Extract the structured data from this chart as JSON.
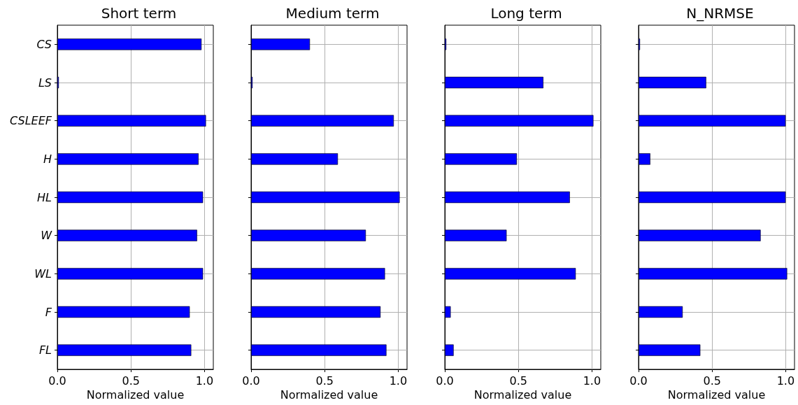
{
  "chart_data": [
    {
      "type": "bar",
      "orientation": "horizontal",
      "title": "Short term",
      "xlabel": "Normalized value",
      "categories": [
        "CS",
        "LS",
        "CSLEEF",
        "H",
        "HL",
        "W",
        "WL",
        "F",
        "FL"
      ],
      "values": [
        0.98,
        0.01,
        1.01,
        0.96,
        0.99,
        0.95,
        0.99,
        0.9,
        0.91
      ],
      "color": "#0000ff",
      "xlim": [
        0,
        1.06
      ],
      "xticks": [
        {
          "value": 0,
          "label": "0.0"
        },
        {
          "value": 0.5,
          "label": "0.5"
        },
        {
          "value": 1,
          "label": "1.0"
        }
      ],
      "grid": true
    },
    {
      "type": "bar",
      "orientation": "horizontal",
      "title": "Medium term",
      "xlabel": "Normalized value",
      "categories": [
        null,
        null,
        null,
        null,
        null,
        null,
        null,
        null,
        null
      ],
      "values": [
        0.4,
        0.01,
        0.97,
        0.59,
        1.01,
        0.78,
        0.91,
        0.88,
        0.92
      ],
      "color": "#0000ff",
      "xlim": [
        0,
        1.06
      ],
      "xticks": [
        {
          "value": 0,
          "label": "0.0"
        },
        {
          "value": 0.5,
          "label": "0.5"
        },
        {
          "value": 1,
          "label": "1.0"
        }
      ],
      "grid": true,
      "tick_labels": "x"
    },
    {
      "type": "bar",
      "orientation": "horizontal",
      "title": "Long term",
      "xlabel": "Normalized value",
      "categories": [
        null,
        null,
        null,
        null,
        null,
        null,
        null,
        null,
        null
      ],
      "values": [
        0.01,
        0.67,
        1.01,
        0.49,
        0.85,
        0.42,
        0.89,
        0.04,
        0.06
      ],
      "color": "#0000ff",
      "xlim": [
        0,
        1.06
      ],
      "xticks": [
        {
          "value": 0,
          "label": "0.0"
        },
        {
          "value": 0.5,
          "label": "0.5"
        },
        {
          "value": 1,
          "label": "1.0"
        }
      ],
      "grid": true,
      "tick_labels": "x"
    },
    {
      "type": "bar",
      "orientation": "horizontal",
      "title": "N_NRMSE",
      "xlabel": "Normalized value",
      "categories": [
        null,
        null,
        null,
        null,
        null,
        null,
        null,
        null,
        null
      ],
      "values": [
        0.01,
        0.46,
        1.0,
        0.08,
        1.0,
        0.83,
        1.01,
        0.3,
        0.42
      ],
      "color": "#0000ff",
      "xlim": [
        0,
        1.06
      ],
      "xticks": [
        {
          "value": 0,
          "label": "0.0"
        },
        {
          "value": 0.5,
          "label": "0.5"
        },
        {
          "value": 1,
          "label": "1.0"
        }
      ],
      "grid": true,
      "tick_labels": "x"
    }
  ]
}
